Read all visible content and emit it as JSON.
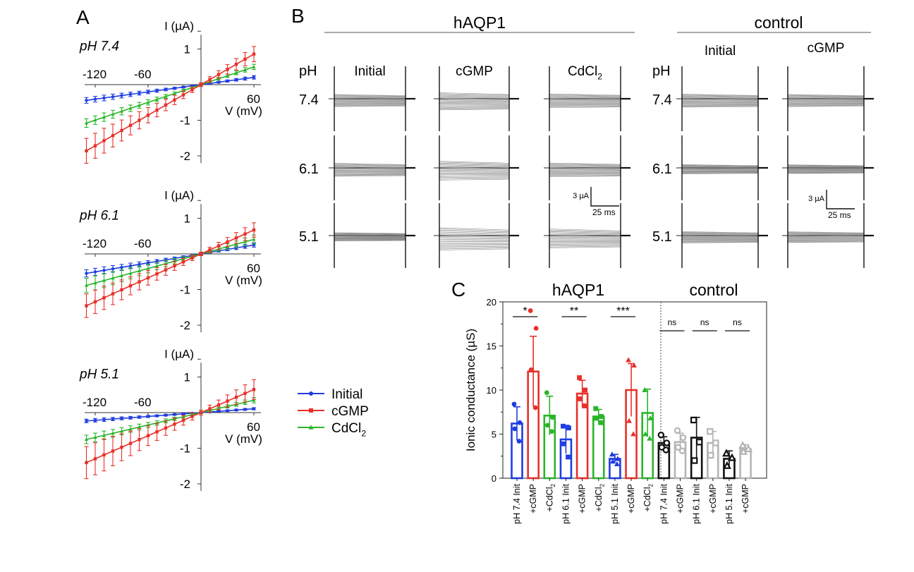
{
  "panels": {
    "a": "A",
    "b": "B",
    "c": "C"
  },
  "colors": {
    "initial": "#1f3de0",
    "cgmp": "#e8302a",
    "cdcl2": "#2ab52a",
    "ctrl_init": "#111111",
    "ctrl_cgmp": "#b5b5b5"
  },
  "iv": {
    "ylabel": "I (µA)",
    "xlabel": "V (mV)",
    "xticks": [
      "-120",
      "-60",
      "60"
    ],
    "yticks": [
      "1",
      "-1",
      "-2"
    ],
    "xlim": [
      -140,
      80
    ],
    "ylim": [
      -2.2,
      1.4
    ],
    "voltages": [
      -130,
      -120,
      -110,
      -100,
      -90,
      -80,
      -70,
      -60,
      -50,
      -40,
      -30,
      -20,
      -10,
      0,
      10,
      20,
      30,
      40,
      50,
      60
    ],
    "panels": [
      {
        "label": "pH 7.4",
        "series": [
          {
            "key": "initial",
            "slope": 0.0034,
            "err": 0.08
          },
          {
            "key": "cgmp",
            "slope": 0.0143,
            "err": 0.35
          },
          {
            "key": "cdcl2",
            "slope": 0.0083,
            "err": 0.12
          }
        ]
      },
      {
        "label": "pH 6.1",
        "series": [
          {
            "key": "initial",
            "slope": 0.0042,
            "err": 0.1
          },
          {
            "key": "cgmp",
            "slope": 0.0112,
            "err": 0.33
          },
          {
            "key": "cdcl2",
            "slope": 0.0068,
            "err": 0.2
          }
        ]
      },
      {
        "label": "pH 5.1",
        "series": [
          {
            "key": "initial",
            "slope": 0.0018,
            "err": 0.05
          },
          {
            "key": "cgmp",
            "slope": 0.0108,
            "err": 0.45
          },
          {
            "key": "cdcl2",
            "slope": 0.0058,
            "err": 0.12
          }
        ]
      }
    ]
  },
  "legend": [
    {
      "key": "initial",
      "label": "Initial",
      "marker": "circle"
    },
    {
      "key": "cgmp",
      "label": "cGMP",
      "marker": "square"
    },
    {
      "key": "cdcl2",
      "label": "CdCl",
      "sub": "2",
      "marker": "triangle"
    }
  ],
  "traces": {
    "hAQP1": "hAQP1",
    "control": "control",
    "ph_label": "pH",
    "rows": [
      "7.4",
      "6.1",
      "5.1"
    ],
    "hAQP1_cols": [
      {
        "label": "Initial",
        "spreads": [
          0.6,
          0.7,
          0.15
        ]
      },
      {
        "label": "cGMP",
        "spreads": [
          1.2,
          1.4,
          1.8
        ]
      },
      {
        "label": "CdCl",
        "sub": "2",
        "spreads": [
          0.8,
          0.8,
          1.4
        ]
      }
    ],
    "control_cols": [
      {
        "label": "Initial",
        "spreads": [
          0.7,
          0.25,
          0.5
        ]
      },
      {
        "label": "cGMP",
        "spreads": [
          0.6,
          0.2,
          0.45
        ]
      }
    ],
    "scale_current": "3 µA",
    "scale_time": "25 ms"
  },
  "chart_data": {
    "type": "bar",
    "title_left": "hAQP1",
    "title_right": "control",
    "ylabel": "Ionic conductance (µS)",
    "ylim": [
      0,
      20
    ],
    "yticks": [
      0,
      5,
      10,
      15,
      20
    ],
    "bars": [
      {
        "label": "pH 7.4 Init",
        "value": 6.2,
        "err": 1.9,
        "color": "initial",
        "marker": "circle",
        "points": [
          8.4,
          6.3,
          5.6,
          4.2
        ]
      },
      {
        "label": "+cGMP",
        "value": 12.1,
        "err": 4.0,
        "color": "cgmp",
        "marker": "circle",
        "points": [
          19.0,
          17.0,
          12.3,
          8.0
        ]
      },
      {
        "label": "+CdCl",
        "sub": "2",
        "value": 7.1,
        "err": 2.2,
        "color": "cdcl2",
        "marker": "circle",
        "points": [
          9.7,
          6.9,
          6.0,
          5.3
        ]
      },
      {
        "label": "pH 6.1 Init",
        "value": 4.4,
        "err": 1.6,
        "color": "initial",
        "marker": "square",
        "points": [
          5.9,
          5.7,
          3.9,
          2.4
        ]
      },
      {
        "label": "+cGMP",
        "value": 9.6,
        "err": 1.5,
        "color": "cgmp",
        "marker": "square",
        "points": [
          11.4,
          10.0,
          9.0,
          8.2
        ]
      },
      {
        "label": "+CdCl",
        "sub": "2",
        "value": 7.0,
        "err": 0.8,
        "color": "cdcl2",
        "marker": "square",
        "points": [
          7.9,
          7.0,
          6.8,
          6.3
        ]
      },
      {
        "label": "pH 5.1 Init",
        "value": 2.2,
        "err": 0.5,
        "color": "initial",
        "marker": "triangle",
        "points": [
          2.7,
          2.2,
          1.9,
          1.6
        ]
      },
      {
        "label": "+cGMP",
        "value": 10.0,
        "err": 3.0,
        "color": "cgmp",
        "marker": "triangle",
        "points": [
          13.4,
          12.8,
          6.5,
          5.0
        ]
      },
      {
        "label": "+CdCl",
        "sub": "2",
        "value": 7.4,
        "err": 2.7,
        "color": "cdcl2",
        "marker": "triangle",
        "points": [
          10.0,
          6.8,
          5.0,
          4.5
        ]
      },
      {
        "label": "pH 7.4 Init",
        "value": 4.0,
        "err": 0.7,
        "color": "ctrl_init",
        "marker": "circle_open",
        "points": [
          4.9,
          4.0,
          3.5,
          3.2
        ]
      },
      {
        "label": "+cGMP",
        "value": 4.1,
        "err": 1.0,
        "color": "ctrl_cgmp",
        "marker": "circle_open",
        "points": [
          5.4,
          4.6,
          3.5,
          3.1
        ]
      },
      {
        "label": "pH 6.1 Init",
        "value": 4.6,
        "err": 2.3,
        "color": "ctrl_init",
        "marker": "square_open",
        "points": [
          6.6,
          4.1,
          2.0
        ]
      },
      {
        "label": "+cGMP",
        "value": 4.0,
        "err": 1.3,
        "color": "ctrl_cgmp",
        "marker": "square_open",
        "points": [
          5.3,
          4.0,
          2.6
        ]
      },
      {
        "label": "pH 5.1 Init",
        "value": 2.2,
        "err": 0.9,
        "color": "ctrl_init",
        "marker": "triangle_open",
        "points": [
          2.8,
          2.3,
          1.4
        ]
      },
      {
        "label": "+cGMP",
        "value": 3.3,
        "err": 0.5,
        "color": "ctrl_cgmp",
        "marker": "triangle_open",
        "points": [
          3.7,
          3.3,
          3.0
        ]
      }
    ],
    "significance": [
      {
        "from": 0,
        "to": 1,
        "text": "*"
      },
      {
        "from": 3,
        "to": 4,
        "text": "**"
      },
      {
        "from": 6,
        "to": 7,
        "text": "***"
      },
      {
        "from": 9,
        "to": 10,
        "text": "ns"
      },
      {
        "from": 11,
        "to": 12,
        "text": "ns"
      },
      {
        "from": 13,
        "to": 14,
        "text": "ns"
      }
    ]
  }
}
